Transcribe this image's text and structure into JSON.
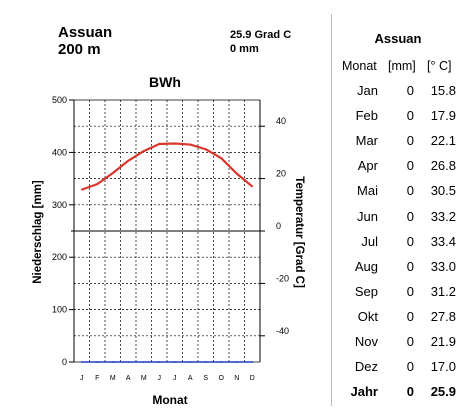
{
  "station": {
    "name": "Assuan",
    "elevation": "200 m",
    "annual_temp": "25.9 Grad C",
    "annual_precip": "0 mm",
    "climate_class": "BWh"
  },
  "table": {
    "title": "Assuan",
    "col_month": "Monat",
    "col_precip": "[mm]",
    "col_temp": "[° C]",
    "rows": [
      {
        "month": "Jan",
        "precip": "0",
        "temp": "15.8"
      },
      {
        "month": "Feb",
        "precip": "0",
        "temp": "17.9"
      },
      {
        "month": "Mar",
        "precip": "0",
        "temp": "22.1"
      },
      {
        "month": "Apr",
        "precip": "0",
        "temp": "26.8"
      },
      {
        "month": "Mai",
        "precip": "0",
        "temp": "30.5"
      },
      {
        "month": "Jun",
        "precip": "0",
        "temp": "33.2"
      },
      {
        "month": "Jul",
        "precip": "0",
        "temp": "33.4"
      },
      {
        "month": "Aug",
        "precip": "0",
        "temp": "33.0"
      },
      {
        "month": "Sep",
        "precip": "0",
        "temp": "31.2"
      },
      {
        "month": "Okt",
        "precip": "0",
        "temp": "27.8"
      },
      {
        "month": "Nov",
        "precip": "0",
        "temp": "21.9"
      },
      {
        "month": "Dez",
        "precip": "0",
        "temp": "17.0"
      }
    ],
    "total": {
      "month": "Jahr",
      "precip": "0",
      "temp": "25.9"
    }
  },
  "chart_data": {
    "type": "line",
    "title": "BWh",
    "xlabel": "Monat",
    "ylabel_left": "Niederschlag [mm]",
    "ylabel_right": "Temperatur [Grad C]",
    "categories": [
      "J",
      "F",
      "M",
      "A",
      "M",
      "J",
      "J",
      "A",
      "S",
      "O",
      "N",
      "D"
    ],
    "ylim_left": [
      0,
      500
    ],
    "yticks_left": [
      0,
      100,
      200,
      300,
      400,
      500
    ],
    "ylim_right": [
      -50,
      50
    ],
    "yticks_right": [
      -40,
      -20,
      0,
      20,
      40
    ],
    "grid": true,
    "series": [
      {
        "axis": "right",
        "color": "#d9362b",
        "values": [
          15.8,
          17.9,
          22.1,
          26.8,
          30.5,
          33.2,
          33.4,
          33.0,
          31.2,
          27.8,
          21.9,
          17.0
        ]
      },
      {
        "axis": "left",
        "color": "#1f3fbf",
        "values": [
          0,
          0,
          0,
          0,
          0,
          0,
          0,
          0,
          0,
          0,
          0,
          0
        ]
      }
    ]
  }
}
